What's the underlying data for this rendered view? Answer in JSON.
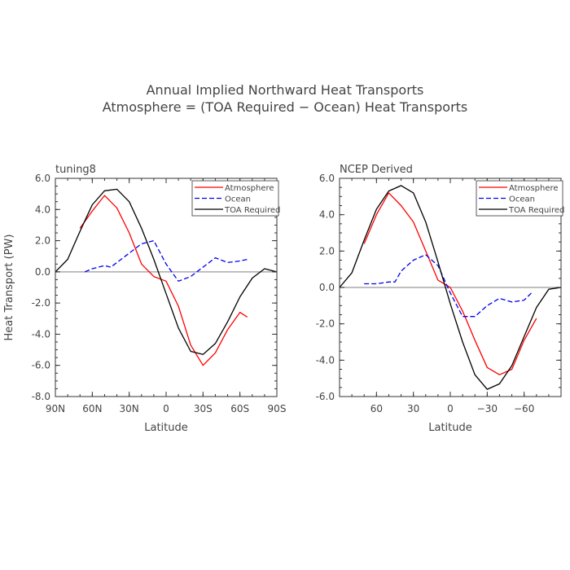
{
  "title": {
    "line1": "Annual Implied Northward Heat Transports",
    "line2": "Atmosphere = (TOA Required − Ocean) Heat Transports"
  },
  "colors": {
    "atmosphere": "#ff0000",
    "ocean": "#0000ee",
    "toa": "#000000",
    "zero_line": "#aaaaaa"
  },
  "chart_data": [
    {
      "type": "line",
      "panel_title": "tuning8",
      "xlabel": "Latitude",
      "ylabel": "Heat Transport (PW)",
      "xlim": [
        90,
        -90
      ],
      "ylim": [
        -8,
        6
      ],
      "x_ticks": [
        {
          "v": 90,
          "label": "90N"
        },
        {
          "v": 60,
          "label": "60N"
        },
        {
          "v": 30,
          "label": "30N"
        },
        {
          "v": 0,
          "label": "0"
        },
        {
          "v": -30,
          "label": "30S"
        },
        {
          "v": -60,
          "label": "60S"
        },
        {
          "v": -90,
          "label": "90S"
        }
      ],
      "y_ticks": [
        {
          "v": 6,
          "label": "6.0"
        },
        {
          "v": 4,
          "label": "4.0"
        },
        {
          "v": 2,
          "label": "2.0"
        },
        {
          "v": 0,
          "label": "0.0"
        },
        {
          "v": -2,
          "label": "-2.0"
        },
        {
          "v": -4,
          "label": "-4.0"
        },
        {
          "v": -6,
          "label": "-6.0"
        },
        {
          "v": -8,
          "label": "-8.0"
        }
      ],
      "legend_position": "top-right",
      "series": [
        {
          "name": "Atmosphere",
          "color": "#ff0000",
          "dash": "solid",
          "x": [
            70,
            60,
            50,
            40,
            30,
            20,
            10,
            0,
            -10,
            -20,
            -30,
            -40,
            -50,
            -60,
            -66
          ],
          "y": [
            2.8,
            3.9,
            4.9,
            4.1,
            2.5,
            0.5,
            -0.3,
            -0.6,
            -2.2,
            -4.7,
            -6.0,
            -5.2,
            -3.7,
            -2.6,
            -2.9
          ]
        },
        {
          "name": "Ocean",
          "color": "#0000ee",
          "dash": "dashed",
          "x": [
            66,
            60,
            50,
            45,
            40,
            30,
            20,
            10,
            0,
            -10,
            -20,
            -30,
            -40,
            -50,
            -60,
            -66
          ],
          "y": [
            0.0,
            0.2,
            0.4,
            0.3,
            0.6,
            1.2,
            1.8,
            2.0,
            0.5,
            -0.6,
            -0.3,
            0.3,
            0.9,
            0.6,
            0.7,
            0.8
          ]
        },
        {
          "name": "TOA Required",
          "color": "#000000",
          "dash": "solid",
          "x": [
            90,
            80,
            70,
            60,
            50,
            40,
            30,
            20,
            10,
            0,
            -10,
            -20,
            -30,
            -40,
            -50,
            -60,
            -70,
            -80,
            -90
          ],
          "y": [
            0,
            0.8,
            2.6,
            4.3,
            5.2,
            5.3,
            4.5,
            2.8,
            0.8,
            -1.4,
            -3.6,
            -5.1,
            -5.3,
            -4.6,
            -3.2,
            -1.6,
            -0.4,
            0.2,
            0
          ]
        }
      ]
    },
    {
      "type": "line",
      "panel_title": "NCEP Derived",
      "xlabel": "Latitude",
      "ylabel": "",
      "xlim": [
        90,
        -90
      ],
      "ylim": [
        -6,
        6
      ],
      "x_ticks": [
        {
          "v": 60,
          "label": "60"
        },
        {
          "v": 30,
          "label": "30"
        },
        {
          "v": 0,
          "label": "0"
        },
        {
          "v": -30,
          "label": "−30"
        },
        {
          "v": -60,
          "label": "−60"
        }
      ],
      "y_ticks": [
        {
          "v": 6,
          "label": "6.0"
        },
        {
          "v": 4,
          "label": "4.0"
        },
        {
          "v": 2,
          "label": "2.0"
        },
        {
          "v": 0,
          "label": "0.0"
        },
        {
          "v": -2,
          "label": "-2.0"
        },
        {
          "v": -4,
          "label": "-4.0"
        },
        {
          "v": -6,
          "label": "-6.0"
        }
      ],
      "legend_position": "top-right",
      "series": [
        {
          "name": "Atmosphere",
          "color": "#ff0000",
          "dash": "solid",
          "x": [
            70,
            60,
            50,
            40,
            30,
            20,
            10,
            0,
            -10,
            -20,
            -30,
            -40,
            -50,
            -60,
            -70
          ],
          "y": [
            2.4,
            4.0,
            5.2,
            4.5,
            3.6,
            2.0,
            0.4,
            0.0,
            -1.3,
            -2.9,
            -4.4,
            -4.8,
            -4.5,
            -2.9,
            -1.7
          ]
        },
        {
          "name": "Ocean",
          "color": "#0000ee",
          "dash": "dashed",
          "x": [
            70,
            60,
            50,
            45,
            40,
            30,
            20,
            10,
            0,
            -10,
            -20,
            -30,
            -40,
            -50,
            -60,
            -66
          ],
          "y": [
            0.2,
            0.2,
            0.3,
            0.3,
            0.9,
            1.5,
            1.8,
            1.2,
            -0.3,
            -1.6,
            -1.6,
            -1.0,
            -0.6,
            -0.8,
            -0.7,
            -0.3
          ]
        },
        {
          "name": "TOA Required",
          "color": "#000000",
          "dash": "solid",
          "x": [
            90,
            80,
            70,
            60,
            50,
            40,
            30,
            20,
            10,
            0,
            -10,
            -20,
            -30,
            -40,
            -50,
            -60,
            -70,
            -80,
            -90
          ],
          "y": [
            0,
            0.8,
            2.6,
            4.3,
            5.3,
            5.6,
            5.2,
            3.6,
            1.4,
            -0.9,
            -3.0,
            -4.8,
            -5.6,
            -5.3,
            -4.3,
            -2.7,
            -1.1,
            -0.1,
            0
          ]
        }
      ]
    }
  ]
}
